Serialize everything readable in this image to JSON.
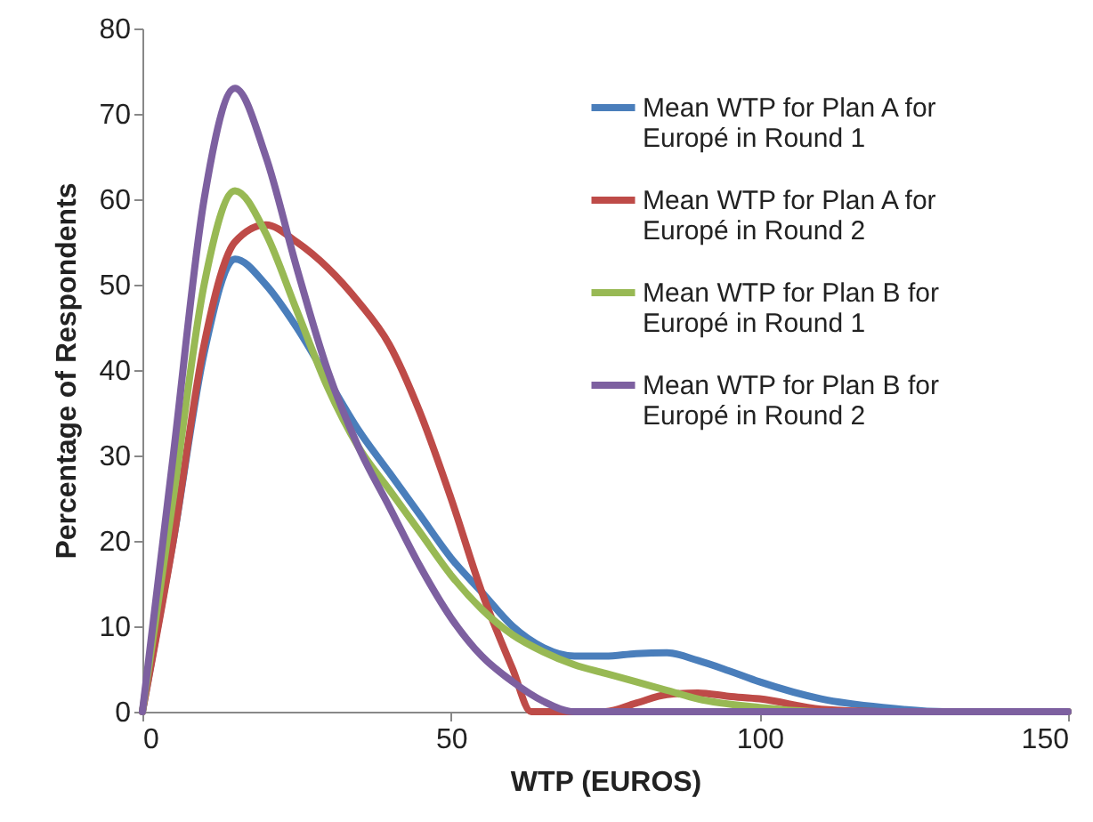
{
  "chart_data": {
    "type": "line",
    "xlabel": "WTP (EUROS)",
    "ylabel": "Percentage of Respondents",
    "xlim": [
      0,
      150
    ],
    "xticks": [
      0,
      50,
      100,
      150
    ],
    "ylim": [
      0,
      80
    ],
    "yticks": [
      0,
      10,
      20,
      30,
      40,
      50,
      60,
      70,
      80
    ],
    "grid": false,
    "legend": "top right",
    "marker": "none",
    "series": [
      {
        "name": "Mean WTP for Plan A for Europé in Round 1",
        "color": "#4a7ebb",
        "x": [
          0,
          5,
          10,
          15,
          20,
          25,
          30,
          35,
          40,
          45,
          50,
          55,
          60,
          65,
          70,
          75,
          80,
          85,
          90,
          95,
          100,
          110,
          120,
          130,
          140,
          150
        ],
        "values": [
          0,
          20,
          42,
          53,
          50,
          45,
          39,
          33,
          28,
          23,
          18,
          14,
          10,
          7.5,
          6.5,
          6.5,
          6.8,
          6.9,
          6,
          4.8,
          3.5,
          1.5,
          0.5,
          0,
          0,
          0
        ]
      },
      {
        "name": "Mean WTP for Plan A for Europé in Round 2",
        "color": "#be4b48",
        "x": [
          0,
          5,
          10,
          15,
          20,
          25,
          30,
          35,
          40,
          45,
          50,
          55,
          60,
          63,
          75,
          80,
          85,
          90,
          95,
          100,
          110,
          120,
          150
        ],
        "values": [
          0,
          20,
          43,
          55,
          57,
          55,
          52,
          48,
          43,
          35,
          25,
          14,
          5,
          0,
          0,
          1,
          2,
          2.2,
          1.8,
          1.5,
          0.3,
          0,
          0
        ]
      },
      {
        "name": "Mean WTP for Plan B for Europé in Round 1",
        "color": "#98b954",
        "x": [
          0,
          5,
          10,
          15,
          20,
          25,
          30,
          35,
          40,
          45,
          50,
          55,
          60,
          65,
          70,
          75,
          80,
          85,
          90,
          100,
          110,
          150
        ],
        "values": [
          0,
          25,
          50,
          61,
          56,
          47,
          38,
          31,
          26,
          21,
          16,
          12,
          9,
          7,
          5.5,
          4.5,
          3.5,
          2.5,
          1.5,
          0.5,
          0,
          0
        ]
      },
      {
        "name": "Mean WTP for Plan B for Europé in Round 2",
        "color": "#7d60a0",
        "x": [
          0,
          5,
          10,
          15,
          20,
          25,
          30,
          35,
          40,
          45,
          50,
          55,
          60,
          65,
          70,
          150
        ],
        "values": [
          0,
          30,
          60,
          73,
          65,
          52,
          40,
          31,
          24,
          17,
          11,
          6.5,
          3.5,
          1.2,
          0,
          0
        ]
      }
    ]
  }
}
